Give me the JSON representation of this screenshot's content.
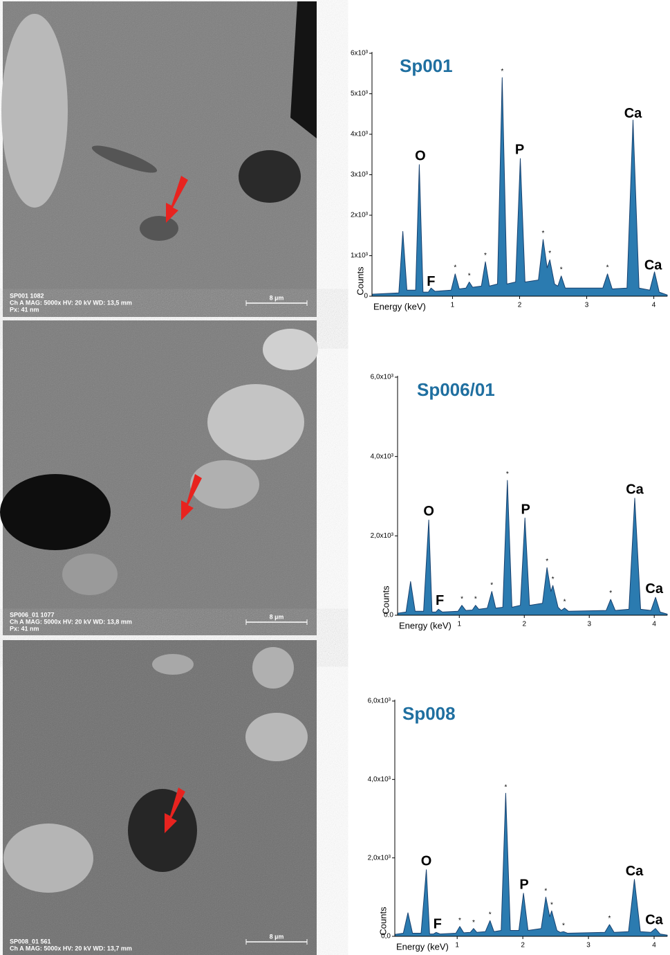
{
  "images": [
    {
      "caption": [
        "SP001 1082",
        "Ch A   MAG: 5000x   HV: 20 kV   WD: 13,5 mm",
        "Px: 41 nm"
      ],
      "scale": "8 µm"
    },
    {
      "caption": [
        "SP006_01 1077",
        "Ch A   MAG: 5000x   HV: 20 kV   WD: 13,8 mm",
        "Px: 41 nm"
      ],
      "scale": "8 µm"
    },
    {
      "caption": [
        "SP008_01 561",
        "Ch A   MAG: 5000x   HV: 20 kV   WD: 13,7 mm"
      ],
      "scale": "8 µm"
    }
  ],
  "chart_data": [
    {
      "type": "area",
      "title": "Sp001",
      "x_label": "Energy (keV)",
      "y_label": "Counts",
      "color": "#2b7bb0",
      "xlim": [
        -0.2,
        4.2
      ],
      "xticks": [
        1,
        2,
        3,
        4
      ],
      "ylim": [
        0,
        6000
      ],
      "yticks": [
        0,
        {
          "value": 1000,
          "label": "1x10³"
        },
        {
          "value": 2000,
          "label": "2x10³"
        },
        {
          "value": 3000,
          "label": "3x10³"
        },
        {
          "value": 4000,
          "label": "4x10³"
        },
        {
          "value": 5000,
          "label": "5x10³"
        },
        {
          "value": 6000,
          "label": "6x10³"
        }
      ],
      "x": [
        -0.2,
        0.2,
        0.26,
        0.32,
        0.45,
        0.505,
        0.56,
        0.64,
        0.68,
        0.74,
        0.98,
        1.04,
        1.1,
        1.2,
        1.25,
        1.3,
        1.43,
        1.49,
        1.55,
        1.67,
        1.74,
        1.81,
        1.94,
        2.01,
        2.08,
        2.28,
        2.35,
        2.41,
        2.45,
        2.52,
        2.57,
        2.62,
        2.68,
        3.24,
        3.31,
        3.38,
        3.6,
        3.69,
        3.78,
        3.94,
        4.01,
        4.08,
        4.2
      ],
      "values": [
        50,
        80,
        1600,
        150,
        150,
        3250,
        100,
        100,
        200,
        120,
        150,
        550,
        180,
        200,
        350,
        220,
        250,
        850,
        250,
        300,
        5400,
        300,
        350,
        3400,
        350,
        400,
        1400,
        700,
        900,
        300,
        250,
        500,
        200,
        200,
        550,
        180,
        200,
        4350,
        200,
        150,
        600,
        100,
        30
      ],
      "annotations": [
        {
          "text": "O",
          "x": 0.52,
          "y": 3450
        },
        {
          "text": "F",
          "x": 0.68,
          "y": 350
        },
        {
          "text": "P",
          "x": 2.0,
          "y": 3600
        },
        {
          "text": "Ca",
          "x": 3.69,
          "y": 4500
        },
        {
          "text": "Ca",
          "x": 3.99,
          "y": 750
        },
        {
          "text": "*",
          "x": 1.04,
          "y": 700
        },
        {
          "text": "*",
          "x": 1.25,
          "y": 500
        },
        {
          "text": "*",
          "x": 1.49,
          "y": 1000
        },
        {
          "text": "*",
          "x": 1.74,
          "y": 5550
        },
        {
          "text": "*",
          "x": 2.35,
          "y": 1550
        },
        {
          "text": "*",
          "x": 2.45,
          "y": 1050
        },
        {
          "text": "*",
          "x": 2.62,
          "y": 650
        },
        {
          "text": "*",
          "x": 3.31,
          "y": 700
        }
      ]
    },
    {
      "type": "area",
      "title": "Sp006/01",
      "x_label": "Energy (keV)",
      "y_label": "Counts",
      "color": "#2b7bb0",
      "xlim": [
        0.05,
        4.2
      ],
      "xticks": [
        1,
        2,
        3,
        4
      ],
      "ylim": [
        0,
        6000
      ],
      "yticks": [
        {
          "value": 0,
          "label": "0.0"
        },
        {
          "value": 2000,
          "label": "2,0x10³"
        },
        {
          "value": 4000,
          "label": "4,0x10³"
        },
        {
          "value": 6000,
          "label": "6,0x10³"
        }
      ],
      "x": [
        0.05,
        0.18,
        0.25,
        0.32,
        0.45,
        0.53,
        0.58,
        0.64,
        0.68,
        0.74,
        0.98,
        1.04,
        1.1,
        1.2,
        1.25,
        1.3,
        1.43,
        1.5,
        1.56,
        1.67,
        1.74,
        1.81,
        1.94,
        2.01,
        2.08,
        2.28,
        2.35,
        2.41,
        2.44,
        2.52,
        2.57,
        2.62,
        2.68,
        3.26,
        3.33,
        3.4,
        3.61,
        3.7,
        3.79,
        3.95,
        4.02,
        4.09,
        4.2
      ],
      "values": [
        50,
        80,
        850,
        100,
        100,
        2400,
        80,
        80,
        150,
        80,
        100,
        250,
        120,
        130,
        250,
        150,
        180,
        600,
        180,
        200,
        3400,
        200,
        250,
        2450,
        250,
        300,
        1200,
        600,
        750,
        200,
        120,
        180,
        100,
        120,
        400,
        120,
        150,
        2950,
        150,
        120,
        450,
        80,
        30
      ],
      "annotations": [
        {
          "text": "O",
          "x": 0.53,
          "y": 2600
        },
        {
          "text": "F",
          "x": 0.7,
          "y": 350
        },
        {
          "text": "P",
          "x": 2.02,
          "y": 2650
        },
        {
          "text": "Ca",
          "x": 3.7,
          "y": 3150
        },
        {
          "text": "Ca",
          "x": 4.0,
          "y": 650
        },
        {
          "text": "*",
          "x": 1.04,
          "y": 400
        },
        {
          "text": "*",
          "x": 1.25,
          "y": 400
        },
        {
          "text": "*",
          "x": 1.5,
          "y": 750
        },
        {
          "text": "*",
          "x": 1.74,
          "y": 3550
        },
        {
          "text": "*",
          "x": 2.35,
          "y": 1350
        },
        {
          "text": "*",
          "x": 2.44,
          "y": 900
        },
        {
          "text": "*",
          "x": 2.62,
          "y": 330
        },
        {
          "text": "*",
          "x": 3.33,
          "y": 550
        }
      ]
    },
    {
      "type": "area",
      "title": "Sp008",
      "x_label": "Energy (keV)",
      "y_label": "Counts",
      "color": "#2b7bb0",
      "xlim": [
        0.05,
        4.2
      ],
      "xticks": [
        1,
        2,
        3,
        4
      ],
      "ylim": [
        0,
        6000
      ],
      "yticks": [
        {
          "value": 0,
          "label": "0,0"
        },
        {
          "value": 2000,
          "label": "2,0x10³"
        },
        {
          "value": 4000,
          "label": "4,0x10³"
        },
        {
          "value": 6000,
          "label": "6,0x10³"
        }
      ],
      "x": [
        0.05,
        0.18,
        0.25,
        0.32,
        0.45,
        0.53,
        0.58,
        0.64,
        0.68,
        0.74,
        0.98,
        1.04,
        1.1,
        1.2,
        1.25,
        1.3,
        1.43,
        1.5,
        1.56,
        1.67,
        1.74,
        1.81,
        1.94,
        2.01,
        2.08,
        2.28,
        2.35,
        2.41,
        2.44,
        2.52,
        2.57,
        2.62,
        2.68,
        3.25,
        3.32,
        3.39,
        3.61,
        3.7,
        3.79,
        3.95,
        4.02,
        4.09,
        4.2
      ],
      "values": [
        50,
        80,
        600,
        80,
        80,
        1700,
        60,
        60,
        100,
        60,
        80,
        250,
        90,
        100,
        200,
        100,
        120,
        400,
        120,
        150,
        3650,
        150,
        150,
        1100,
        150,
        200,
        1000,
        500,
        650,
        150,
        100,
        120,
        80,
        100,
        300,
        100,
        120,
        1450,
        120,
        100,
        200,
        60,
        30
      ],
      "annotations": [
        {
          "text": "O",
          "x": 0.53,
          "y": 1900
        },
        {
          "text": "F",
          "x": 0.7,
          "y": 300
        },
        {
          "text": "P",
          "x": 2.02,
          "y": 1300
        },
        {
          "text": "Ca",
          "x": 3.7,
          "y": 1650
        },
        {
          "text": "Ca",
          "x": 4.0,
          "y": 400
        },
        {
          "text": "*",
          "x": 1.04,
          "y": 400
        },
        {
          "text": "*",
          "x": 1.25,
          "y": 350
        },
        {
          "text": "*",
          "x": 1.5,
          "y": 550
        },
        {
          "text": "*",
          "x": 1.74,
          "y": 3800
        },
        {
          "text": "*",
          "x": 2.35,
          "y": 1150
        },
        {
          "text": "*",
          "x": 2.44,
          "y": 800
        },
        {
          "text": "*",
          "x": 2.62,
          "y": 270
        },
        {
          "text": "*",
          "x": 3.32,
          "y": 450
        }
      ]
    }
  ]
}
